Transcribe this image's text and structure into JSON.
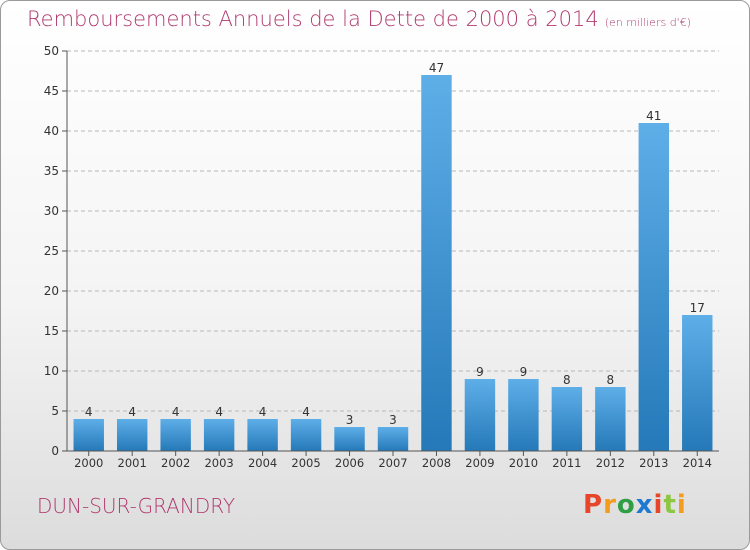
{
  "header": {
    "title": "Remboursements Annuels de la Dette de 2000 à 2014",
    "subtitle": "(en milliers d'€)"
  },
  "footer": {
    "location": "DUN-SUR-GRANDRY",
    "brand": "Proxiti",
    "brand_colors": [
      "#e8462a",
      "#f39c1f",
      "#2f9e44",
      "#1f78d1",
      "#e8462a",
      "#8dc63f",
      "#f39c1f"
    ]
  },
  "chart_data": {
    "type": "bar",
    "title": "Remboursements Annuels de la Dette de 2000 à 2014",
    "xlabel": "",
    "ylabel": "",
    "categories": [
      "2000",
      "2001",
      "2002",
      "2003",
      "2004",
      "2005",
      "2006",
      "2007",
      "2008",
      "2009",
      "2010",
      "2011",
      "2012",
      "2013",
      "2014"
    ],
    "values": [
      4,
      4,
      4,
      4,
      4,
      4,
      3,
      3,
      47,
      9,
      9,
      8,
      8,
      41,
      17
    ],
    "data_labels": [
      "4",
      "4",
      "4",
      "4",
      "4",
      "4",
      "3",
      "3",
      "47",
      "9",
      "9",
      "8",
      "8",
      "41",
      "17"
    ],
    "ylim": [
      0,
      50
    ],
    "yticks": [
      0,
      5,
      10,
      15,
      20,
      25,
      30,
      35,
      40,
      45,
      50
    ],
    "grid": "horizontal-dashed",
    "bar_color_top": "#5eaee8",
    "bar_color_bottom": "#2579b8",
    "grid_color": "#b8b8b8"
  }
}
